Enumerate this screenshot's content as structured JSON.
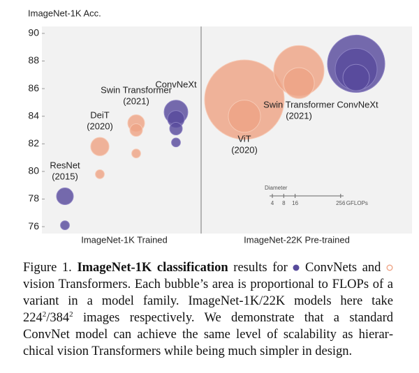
{
  "chart_data": {
    "type": "bubble",
    "y_label": "ImageNet-1K Acc.",
    "ylim": [
      75.5,
      90.5
    ],
    "yticks": [
      76,
      78,
      80,
      82,
      84,
      86,
      88,
      90
    ],
    "panels": [
      "ImageNet-1K Trained",
      "ImageNet-22K Pre-trained"
    ],
    "colors": {
      "convnet": "#584b9c",
      "transformer": "#eea385"
    },
    "groups": [
      {
        "name": "ResNet",
        "year": "(2015)",
        "kind": "convnet",
        "panel": 0,
        "values": [
          76.1,
          78.2
        ],
        "sizes": [
          4.5,
          16
        ]
      },
      {
        "name": "DeiT",
        "year": "(2020)",
        "kind": "transformer",
        "panel": 0,
        "values": [
          79.8,
          81.8
        ],
        "sizes": [
          4.5,
          19
        ]
      },
      {
        "name": "Swin Transformer",
        "year": "(2021)",
        "kind": "transformer",
        "panel": 0,
        "values": [
          81.3,
          83.0,
          83.5
        ],
        "sizes": [
          4.5,
          9,
          16
        ]
      },
      {
        "name": "ConvNeXt",
        "kind": "convnet",
        "panel": 0,
        "values": [
          82.1,
          83.1,
          83.8,
          84.3
        ],
        "sizes": [
          4.5,
          9,
          16,
          32
        ]
      },
      {
        "name": "ViT",
        "year": "(2020)",
        "kind": "transformer",
        "panel": 1,
        "values": [
          84.0,
          85.2
        ],
        "sizes": [
          59,
          361
        ]
      },
      {
        "name": "Swin Transformer",
        "year": "(2021)",
        "kind": "transformer",
        "panel": 1,
        "values": [
          86.4,
          87.3
        ],
        "sizes": [
          54,
          144
        ]
      },
      {
        "name": "ConvNeXt",
        "kind": "convnet",
        "panel": 1,
        "values": [
          86.8,
          87.4,
          87.8
        ],
        "sizes": [
          40,
          100,
          187
        ]
      }
    ],
    "size_legend": {
      "title": "Diameter",
      "ticks": [
        4,
        8,
        16,
        256
      ],
      "unit": "GFLOPs"
    }
  },
  "caption": {
    "label": "Figure 1.",
    "bold": "ImageNet-1K classification",
    "t1": "results for",
    "t2": "ConvNets and",
    "t3": "vision Transformers. Each bubble’s area is proportional to FLOPs of a variant in a model family. ImageNet-1K/22K models here take",
    "n1": "224",
    "sup1": "2",
    "n2": "/384",
    "sup2": "2",
    "t4": "images respectively. We demonstrate that a standard ConvNet model can achieve the same level of scalability as hierar­chical vision Transformers while being much simpler in design."
  }
}
